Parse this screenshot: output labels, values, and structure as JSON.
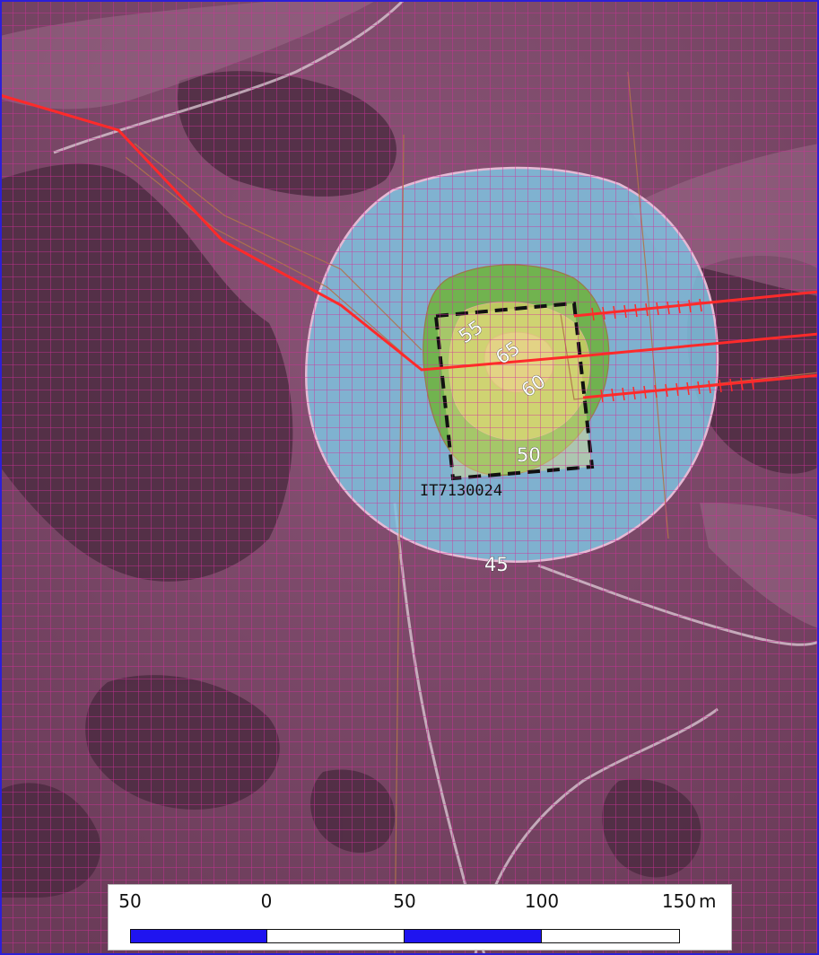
{
  "map": {
    "site_label": "IT7130024",
    "contours": [
      {
        "level": "45",
        "color": "#7fc3e0"
      },
      {
        "level": "50",
        "color": "#a9c95a"
      },
      {
        "level": "55",
        "color": "#6fb240"
      },
      {
        "level": "60",
        "color": "#d8d06a"
      },
      {
        "level": "65",
        "color": "#e9c98a"
      }
    ],
    "colors": {
      "background": "#6e3e5c",
      "grid": "#d0309a",
      "frame": "#2d1fd6",
      "power_line": "#ff2a2a",
      "site_boundary": "#111111"
    }
  },
  "scale_bar": {
    "ticks": [
      "50",
      "0",
      "50",
      "100",
      "150"
    ],
    "unit": "m",
    "fill_colors": [
      "#1f14f0",
      "#ffffff",
      "#1f14f0",
      "#ffffff"
    ]
  }
}
